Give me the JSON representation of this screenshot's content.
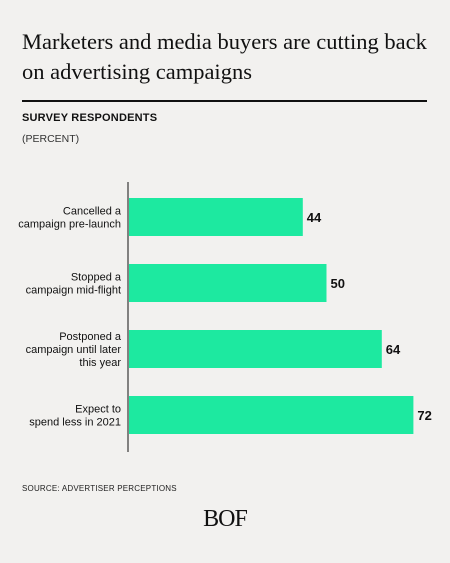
{
  "header": {
    "title": "Marketers and media buyers are cutting back on advertising campaigns",
    "subtitle": "SURVEY RESPONDENTS",
    "unit": "(PERCENT)"
  },
  "chart_data": {
    "type": "bar",
    "orientation": "horizontal",
    "categories": [
      [
        "Cancelled a",
        "campaign pre-launch"
      ],
      [
        "Stopped a",
        "campaign mid-flight"
      ],
      [
        "Postponed a",
        "campaign until later",
        "this year"
      ],
      [
        "Expect to",
        "spend less in 2021"
      ]
    ],
    "values": [
      44,
      50,
      64,
      72
    ],
    "bar_color": "#1de9a0",
    "xlim": [
      0,
      100
    ],
    "grid": false,
    "legend": "none"
  },
  "footer": {
    "source": "SOURCE: ADVERTISER PERCEPTIONS",
    "logo": "BOF"
  }
}
